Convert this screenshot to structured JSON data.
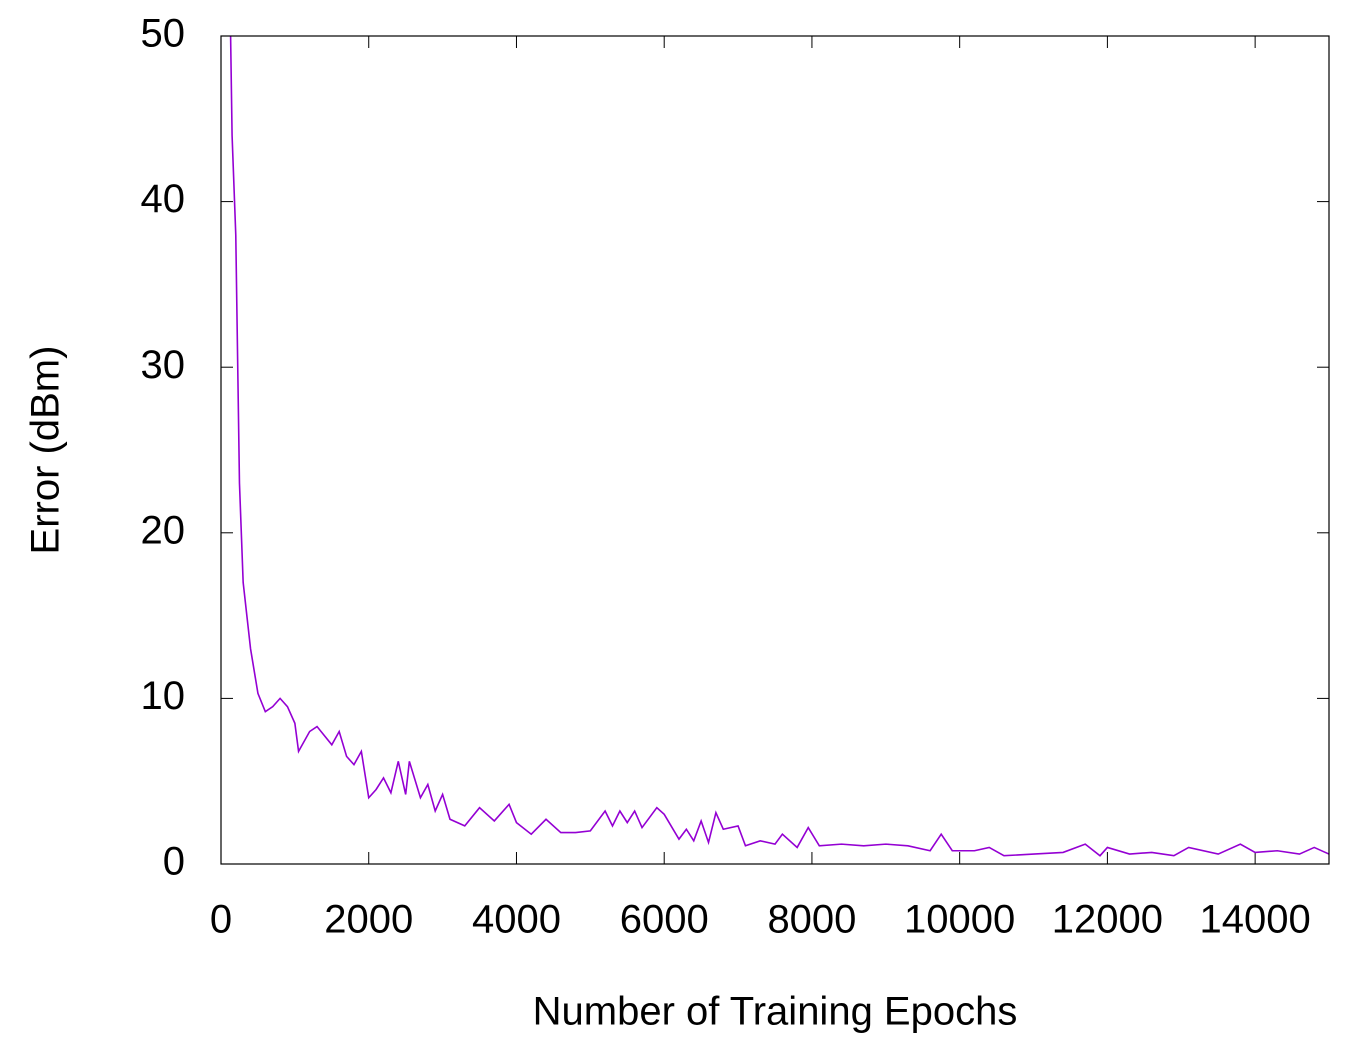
{
  "chart_data": {
    "type": "line",
    "xlabel": "Number of Training Epochs",
    "ylabel": "Error (dBm)",
    "xlim": [
      0,
      15000
    ],
    "xticks": [
      0,
      2000,
      4000,
      6000,
      8000,
      10000,
      12000,
      14000
    ],
    "ylim": [
      0,
      50
    ],
    "yticks": [
      0,
      10,
      20,
      30,
      40,
      50
    ],
    "grid": false,
    "series": [
      {
        "name": "Error",
        "color": "#9400d3",
        "x": [
          130,
          150,
          200,
          250,
          300,
          350,
          400,
          500,
          600,
          700,
          800,
          900,
          1000,
          1050,
          1200,
          1300,
          1500,
          1600,
          1700,
          1800,
          1900,
          2000,
          2100,
          2200,
          2300,
          2400,
          2500,
          2550,
          2700,
          2800,
          2900,
          3000,
          3100,
          3300,
          3500,
          3700,
          3900,
          4000,
          4200,
          4400,
          4600,
          4800,
          5000,
          5200,
          5300,
          5400,
          5500,
          5600,
          5700,
          5900,
          6000,
          6200,
          6300,
          6400,
          6500,
          6600,
          6700,
          6800,
          7000,
          7100,
          7300,
          7500,
          7600,
          7800,
          7950,
          8100,
          8400,
          8700,
          9000,
          9300,
          9600,
          9750,
          9900,
          10200,
          10400,
          10600,
          11000,
          11400,
          11700,
          11900,
          12000,
          12300,
          12600,
          12900,
          13100,
          13500,
          13800,
          14000,
          14300,
          14600,
          14800,
          15000
        ],
        "values": [
          50,
          44,
          38,
          23,
          17,
          15,
          13,
          10.3,
          9.2,
          9.5,
          10,
          9.5,
          8.5,
          6.8,
          8,
          8.3,
          7.2,
          8,
          6.5,
          6,
          6.8,
          4,
          4.5,
          5.2,
          4.3,
          6.2,
          4.2,
          6.2,
          4,
          4.8,
          3.2,
          4.2,
          2.7,
          2.3,
          3.4,
          2.6,
          3.6,
          2.5,
          1.8,
          2.7,
          1.9,
          1.9,
          2.0,
          3.2,
          2.3,
          3.2,
          2.5,
          3.2,
          2.2,
          3.4,
          3.0,
          1.5,
          2.1,
          1.4,
          2.6,
          1.3,
          3.1,
          2.1,
          2.3,
          1.1,
          1.4,
          1.2,
          1.8,
          1.0,
          2.2,
          1.1,
          1.2,
          1.1,
          1.2,
          1.1,
          0.8,
          1.8,
          0.8,
          0.8,
          1.0,
          0.5,
          0.6,
          0.7,
          1.2,
          0.5,
          1.0,
          0.6,
          0.7,
          0.5,
          1.0,
          0.6,
          1.2,
          0.7,
          0.8,
          0.6,
          1.0,
          0.6
        ]
      }
    ]
  }
}
